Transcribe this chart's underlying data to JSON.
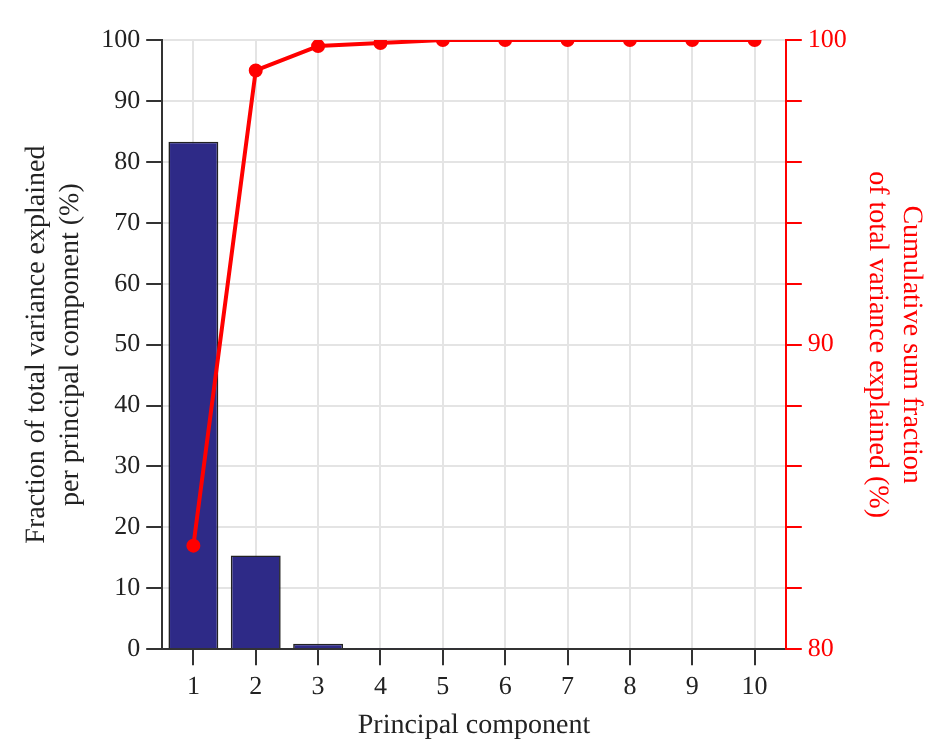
{
  "chart_data": {
    "type": "bar",
    "xlabel": "Principal component",
    "ylabel": "Fraction of total variance explained\nper principal component (%)",
    "y2label": "Cumulative sum fraction\nof total variance explained (%)",
    "categories": [
      "1",
      "2",
      "3",
      "4",
      "5",
      "6",
      "7",
      "8",
      "9",
      "10"
    ],
    "series": [
      {
        "color": "#2e2a87",
        "values": [
          83.3,
          15.4,
          0.9,
          0.2,
          0.1,
          0,
          0,
          0,
          0,
          0
        ]
      },
      {
        "type": "line",
        "axis": "y2",
        "color": "#ff0000",
        "values": [
          83.4,
          99.0,
          99.8,
          99.9,
          100,
          100,
          100,
          100,
          100,
          100
        ]
      }
    ],
    "ylim": [
      0,
      100
    ],
    "yticks": [
      0,
      10,
      20,
      30,
      40,
      50,
      60,
      70,
      80,
      90,
      100
    ],
    "y2lim": [
      80,
      100
    ],
    "y2ticks": [
      80,
      {
        "value": 82,
        "label": null
      },
      {
        "value": 84,
        "label": null
      },
      {
        "value": 86,
        "label": null
      },
      {
        "value": 88,
        "label": null
      },
      90,
      {
        "value": 92,
        "label": null
      },
      {
        "value": 94,
        "label": null
      },
      {
        "value": 96,
        "label": null
      },
      {
        "value": 98,
        "label": null
      },
      100
    ],
    "grid": true,
    "legend": false,
    "marker": "circle",
    "line_style": "solid"
  }
}
